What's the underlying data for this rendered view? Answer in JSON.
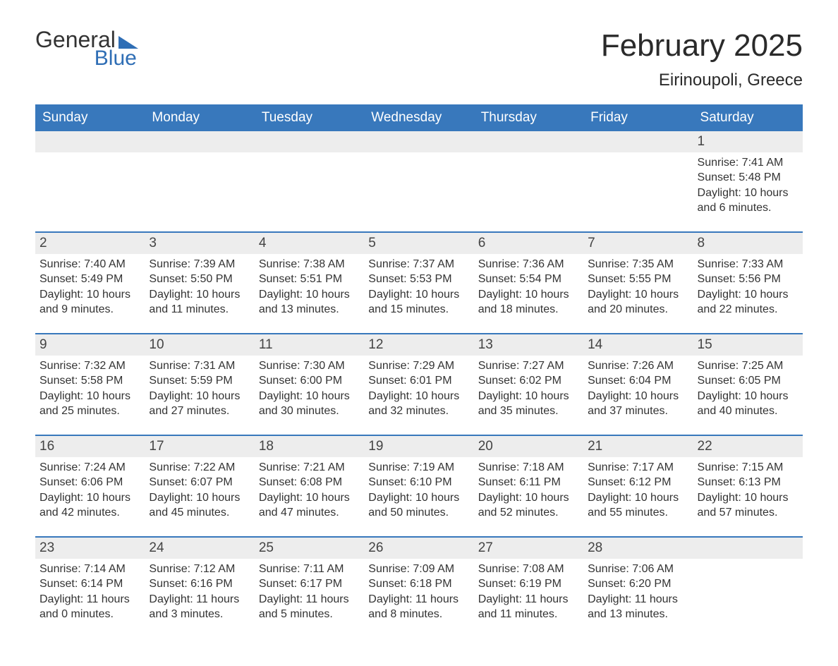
{
  "logo": {
    "word1": "General",
    "word2": "Blue"
  },
  "title": "February 2025",
  "location": "Eirinoupoli, Greece",
  "columns": [
    "Sunday",
    "Monday",
    "Tuesday",
    "Wednesday",
    "Thursday",
    "Friday",
    "Saturday"
  ],
  "colors": {
    "header_bg": "#3878bc",
    "header_text": "#ffffff",
    "row_separator": "#3878bc",
    "daynum_bg": "#ededed",
    "text": "#333333",
    "logo_accent": "#2f6eb5",
    "page_bg": "#ffffff"
  },
  "typography": {
    "title_fontsize": 44,
    "location_fontsize": 24,
    "header_fontsize": 19,
    "daynum_fontsize": 19,
    "body_fontsize": 16,
    "font_family": "Arial"
  },
  "weeks": [
    [
      null,
      null,
      null,
      null,
      null,
      null,
      {
        "day": "1",
        "sunrise": "Sunrise: 7:41 AM",
        "sunset": "Sunset: 5:48 PM",
        "daylight1": "Daylight: 10 hours",
        "daylight2": "and 6 minutes."
      }
    ],
    [
      {
        "day": "2",
        "sunrise": "Sunrise: 7:40 AM",
        "sunset": "Sunset: 5:49 PM",
        "daylight1": "Daylight: 10 hours",
        "daylight2": "and 9 minutes."
      },
      {
        "day": "3",
        "sunrise": "Sunrise: 7:39 AM",
        "sunset": "Sunset: 5:50 PM",
        "daylight1": "Daylight: 10 hours",
        "daylight2": "and 11 minutes."
      },
      {
        "day": "4",
        "sunrise": "Sunrise: 7:38 AM",
        "sunset": "Sunset: 5:51 PM",
        "daylight1": "Daylight: 10 hours",
        "daylight2": "and 13 minutes."
      },
      {
        "day": "5",
        "sunrise": "Sunrise: 7:37 AM",
        "sunset": "Sunset: 5:53 PM",
        "daylight1": "Daylight: 10 hours",
        "daylight2": "and 15 minutes."
      },
      {
        "day": "6",
        "sunrise": "Sunrise: 7:36 AM",
        "sunset": "Sunset: 5:54 PM",
        "daylight1": "Daylight: 10 hours",
        "daylight2": "and 18 minutes."
      },
      {
        "day": "7",
        "sunrise": "Sunrise: 7:35 AM",
        "sunset": "Sunset: 5:55 PM",
        "daylight1": "Daylight: 10 hours",
        "daylight2": "and 20 minutes."
      },
      {
        "day": "8",
        "sunrise": "Sunrise: 7:33 AM",
        "sunset": "Sunset: 5:56 PM",
        "daylight1": "Daylight: 10 hours",
        "daylight2": "and 22 minutes."
      }
    ],
    [
      {
        "day": "9",
        "sunrise": "Sunrise: 7:32 AM",
        "sunset": "Sunset: 5:58 PM",
        "daylight1": "Daylight: 10 hours",
        "daylight2": "and 25 minutes."
      },
      {
        "day": "10",
        "sunrise": "Sunrise: 7:31 AM",
        "sunset": "Sunset: 5:59 PM",
        "daylight1": "Daylight: 10 hours",
        "daylight2": "and 27 minutes."
      },
      {
        "day": "11",
        "sunrise": "Sunrise: 7:30 AM",
        "sunset": "Sunset: 6:00 PM",
        "daylight1": "Daylight: 10 hours",
        "daylight2": "and 30 minutes."
      },
      {
        "day": "12",
        "sunrise": "Sunrise: 7:29 AM",
        "sunset": "Sunset: 6:01 PM",
        "daylight1": "Daylight: 10 hours",
        "daylight2": "and 32 minutes."
      },
      {
        "day": "13",
        "sunrise": "Sunrise: 7:27 AM",
        "sunset": "Sunset: 6:02 PM",
        "daylight1": "Daylight: 10 hours",
        "daylight2": "and 35 minutes."
      },
      {
        "day": "14",
        "sunrise": "Sunrise: 7:26 AM",
        "sunset": "Sunset: 6:04 PM",
        "daylight1": "Daylight: 10 hours",
        "daylight2": "and 37 minutes."
      },
      {
        "day": "15",
        "sunrise": "Sunrise: 7:25 AM",
        "sunset": "Sunset: 6:05 PM",
        "daylight1": "Daylight: 10 hours",
        "daylight2": "and 40 minutes."
      }
    ],
    [
      {
        "day": "16",
        "sunrise": "Sunrise: 7:24 AM",
        "sunset": "Sunset: 6:06 PM",
        "daylight1": "Daylight: 10 hours",
        "daylight2": "and 42 minutes."
      },
      {
        "day": "17",
        "sunrise": "Sunrise: 7:22 AM",
        "sunset": "Sunset: 6:07 PM",
        "daylight1": "Daylight: 10 hours",
        "daylight2": "and 45 minutes."
      },
      {
        "day": "18",
        "sunrise": "Sunrise: 7:21 AM",
        "sunset": "Sunset: 6:08 PM",
        "daylight1": "Daylight: 10 hours",
        "daylight2": "and 47 minutes."
      },
      {
        "day": "19",
        "sunrise": "Sunrise: 7:19 AM",
        "sunset": "Sunset: 6:10 PM",
        "daylight1": "Daylight: 10 hours",
        "daylight2": "and 50 minutes."
      },
      {
        "day": "20",
        "sunrise": "Sunrise: 7:18 AM",
        "sunset": "Sunset: 6:11 PM",
        "daylight1": "Daylight: 10 hours",
        "daylight2": "and 52 minutes."
      },
      {
        "day": "21",
        "sunrise": "Sunrise: 7:17 AM",
        "sunset": "Sunset: 6:12 PM",
        "daylight1": "Daylight: 10 hours",
        "daylight2": "and 55 minutes."
      },
      {
        "day": "22",
        "sunrise": "Sunrise: 7:15 AM",
        "sunset": "Sunset: 6:13 PM",
        "daylight1": "Daylight: 10 hours",
        "daylight2": "and 57 minutes."
      }
    ],
    [
      {
        "day": "23",
        "sunrise": "Sunrise: 7:14 AM",
        "sunset": "Sunset: 6:14 PM",
        "daylight1": "Daylight: 11 hours",
        "daylight2": "and 0 minutes."
      },
      {
        "day": "24",
        "sunrise": "Sunrise: 7:12 AM",
        "sunset": "Sunset: 6:16 PM",
        "daylight1": "Daylight: 11 hours",
        "daylight2": "and 3 minutes."
      },
      {
        "day": "25",
        "sunrise": "Sunrise: 7:11 AM",
        "sunset": "Sunset: 6:17 PM",
        "daylight1": "Daylight: 11 hours",
        "daylight2": "and 5 minutes."
      },
      {
        "day": "26",
        "sunrise": "Sunrise: 7:09 AM",
        "sunset": "Sunset: 6:18 PM",
        "daylight1": "Daylight: 11 hours",
        "daylight2": "and 8 minutes."
      },
      {
        "day": "27",
        "sunrise": "Sunrise: 7:08 AM",
        "sunset": "Sunset: 6:19 PM",
        "daylight1": "Daylight: 11 hours",
        "daylight2": "and 11 minutes."
      },
      {
        "day": "28",
        "sunrise": "Sunrise: 7:06 AM",
        "sunset": "Sunset: 6:20 PM",
        "daylight1": "Daylight: 11 hours",
        "daylight2": "and 13 minutes."
      },
      null
    ]
  ]
}
